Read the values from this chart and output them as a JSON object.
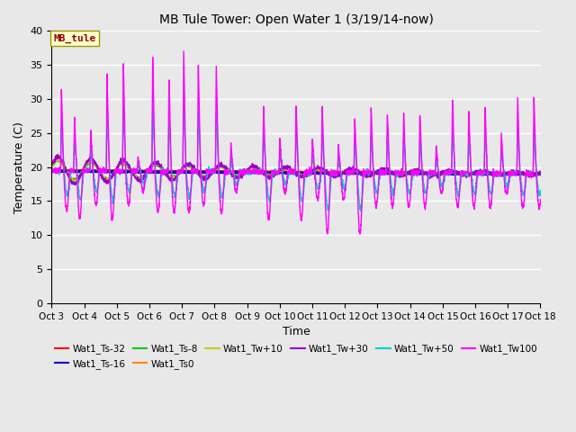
{
  "title": "MB Tule Tower: Open Water 1 (3/19/14-now)",
  "xlabel": "Time",
  "ylabel": "Temperature (C)",
  "ylim": [
    0,
    40
  ],
  "yticks": [
    0,
    5,
    10,
    15,
    20,
    25,
    30,
    35,
    40
  ],
  "xlim_days": [
    3,
    18
  ],
  "xtick_labels": [
    "Oct 3",
    "Oct 4",
    "Oct 5",
    "Oct 6",
    "Oct 7",
    "Oct 8",
    "Oct 9",
    "Oct 10",
    "Oct 11",
    "Oct 12",
    "Oct 13",
    "Oct 14",
    "Oct 15",
    "Oct 16",
    "Oct 17",
    "Oct 18"
  ],
  "annotation_text": "MB_tule",
  "annotation_box_color": "#ffffcc",
  "annotation_text_color": "#990000",
  "background_color": "#e8e8e8",
  "series": [
    {
      "label": "Wat1_Ts-32",
      "color": "#ff0000",
      "lw": 1.5
    },
    {
      "label": "Wat1_Ts-16",
      "color": "#0000cc",
      "lw": 1.5
    },
    {
      "label": "Wat1_Ts-8",
      "color": "#00cc00",
      "lw": 1.0
    },
    {
      "label": "Wat1_Ts0",
      "color": "#ff8800",
      "lw": 1.0
    },
    {
      "label": "Wat1_Tw+10",
      "color": "#cccc00",
      "lw": 1.0
    },
    {
      "label": "Wat1_Tw+30",
      "color": "#9900cc",
      "lw": 1.0
    },
    {
      "label": "Wat1_Tw+50",
      "color": "#00cccc",
      "lw": 1.0
    },
    {
      "label": "Wat1_Tw100",
      "color": "#ff00ff",
      "lw": 1.0
    }
  ]
}
